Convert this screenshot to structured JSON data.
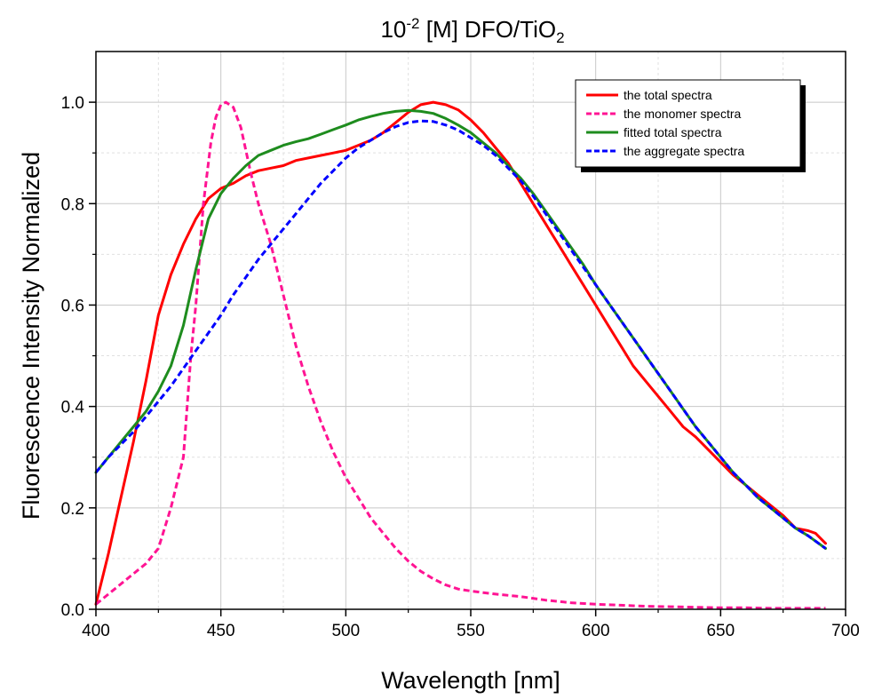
{
  "chart_data": {
    "type": "line",
    "title": {
      "base": "10",
      "exponent": "-2",
      "middle": " [M] DFO/TiO",
      "subscript": "2"
    },
    "xlabel": "Wavelength [nm]",
    "ylabel": "Fluorescence Intensity Normalized",
    "xlim": [
      400,
      700
    ],
    "ylim": [
      0,
      1.1
    ],
    "xticks": [
      "400",
      "450",
      "500",
      "550",
      "600",
      "650",
      "700"
    ],
    "yticks": [
      "0.0",
      "0.2",
      "0.4",
      "0.6",
      "0.8",
      "1.0"
    ],
    "grid": true,
    "legend_position": "top-right",
    "series": [
      {
        "name": "the total spectra",
        "color": "#ff0000",
        "dash": "solid",
        "points": [
          [
            400,
            0.01
          ],
          [
            405,
            0.11
          ],
          [
            410,
            0.22
          ],
          [
            415,
            0.33
          ],
          [
            420,
            0.45
          ],
          [
            425,
            0.58
          ],
          [
            430,
            0.66
          ],
          [
            435,
            0.72
          ],
          [
            440,
            0.77
          ],
          [
            445,
            0.81
          ],
          [
            450,
            0.83
          ],
          [
            455,
            0.84
          ],
          [
            460,
            0.855
          ],
          [
            465,
            0.865
          ],
          [
            470,
            0.87
          ],
          [
            475,
            0.875
          ],
          [
            480,
            0.885
          ],
          [
            485,
            0.89
          ],
          [
            490,
            0.895
          ],
          [
            495,
            0.9
          ],
          [
            500,
            0.905
          ],
          [
            505,
            0.915
          ],
          [
            510,
            0.925
          ],
          [
            515,
            0.94
          ],
          [
            520,
            0.96
          ],
          [
            525,
            0.98
          ],
          [
            530,
            0.995
          ],
          [
            535,
            1.0
          ],
          [
            540,
            0.995
          ],
          [
            545,
            0.985
          ],
          [
            550,
            0.965
          ],
          [
            555,
            0.94
          ],
          [
            560,
            0.91
          ],
          [
            565,
            0.88
          ],
          [
            570,
            0.84
          ],
          [
            575,
            0.8
          ],
          [
            580,
            0.76
          ],
          [
            585,
            0.72
          ],
          [
            590,
            0.68
          ],
          [
            595,
            0.64
          ],
          [
            600,
            0.6
          ],
          [
            605,
            0.56
          ],
          [
            610,
            0.52
          ],
          [
            615,
            0.48
          ],
          [
            620,
            0.45
          ],
          [
            625,
            0.42
          ],
          [
            630,
            0.39
          ],
          [
            635,
            0.36
          ],
          [
            640,
            0.34
          ],
          [
            645,
            0.315
          ],
          [
            650,
            0.29
          ],
          [
            655,
            0.265
          ],
          [
            660,
            0.245
          ],
          [
            665,
            0.225
          ],
          [
            670,
            0.205
          ],
          [
            675,
            0.185
          ],
          [
            680,
            0.16
          ],
          [
            685,
            0.155
          ],
          [
            688,
            0.15
          ],
          [
            692,
            0.13
          ]
        ]
      },
      {
        "name": "the monomer spectra",
        "color": "#ff1493",
        "dash": "dashed",
        "points": [
          [
            400,
            0.01
          ],
          [
            405,
            0.03
          ],
          [
            410,
            0.05
          ],
          [
            415,
            0.07
          ],
          [
            420,
            0.09
          ],
          [
            425,
            0.12
          ],
          [
            430,
            0.2
          ],
          [
            435,
            0.3
          ],
          [
            438,
            0.5
          ],
          [
            440,
            0.6
          ],
          [
            443,
            0.8
          ],
          [
            446,
            0.92
          ],
          [
            448,
            0.97
          ],
          [
            450,
            0.995
          ],
          [
            452,
            1.0
          ],
          [
            455,
            0.99
          ],
          [
            458,
            0.95
          ],
          [
            462,
            0.86
          ],
          [
            465,
            0.8
          ],
          [
            470,
            0.72
          ],
          [
            475,
            0.62
          ],
          [
            480,
            0.52
          ],
          [
            485,
            0.44
          ],
          [
            490,
            0.37
          ],
          [
            495,
            0.31
          ],
          [
            500,
            0.26
          ],
          [
            505,
            0.22
          ],
          [
            510,
            0.18
          ],
          [
            515,
            0.15
          ],
          [
            520,
            0.12
          ],
          [
            525,
            0.095
          ],
          [
            530,
            0.075
          ],
          [
            535,
            0.06
          ],
          [
            540,
            0.048
          ],
          [
            545,
            0.04
          ],
          [
            550,
            0.036
          ],
          [
            555,
            0.033
          ],
          [
            560,
            0.03
          ],
          [
            570,
            0.025
          ],
          [
            580,
            0.018
          ],
          [
            590,
            0.013
          ],
          [
            600,
            0.01
          ],
          [
            610,
            0.008
          ],
          [
            620,
            0.006
          ],
          [
            630,
            0.005
          ],
          [
            640,
            0.004
          ],
          [
            650,
            0.003
          ],
          [
            660,
            0.003
          ],
          [
            670,
            0.002
          ],
          [
            680,
            0.002
          ],
          [
            692,
            0.002
          ]
        ]
      },
      {
        "name": "fitted total spectra",
        "color": "#1e8c1e",
        "dash": "solid",
        "points": [
          [
            400,
            0.27
          ],
          [
            405,
            0.3
          ],
          [
            410,
            0.33
          ],
          [
            415,
            0.36
          ],
          [
            420,
            0.39
          ],
          [
            425,
            0.43
          ],
          [
            430,
            0.48
          ],
          [
            435,
            0.56
          ],
          [
            440,
            0.67
          ],
          [
            445,
            0.77
          ],
          [
            450,
            0.82
          ],
          [
            455,
            0.85
          ],
          [
            460,
            0.875
          ],
          [
            465,
            0.895
          ],
          [
            470,
            0.905
          ],
          [
            475,
            0.915
          ],
          [
            480,
            0.922
          ],
          [
            485,
            0.928
          ],
          [
            490,
            0.937
          ],
          [
            495,
            0.946
          ],
          [
            500,
            0.955
          ],
          [
            505,
            0.965
          ],
          [
            510,
            0.972
          ],
          [
            515,
            0.978
          ],
          [
            520,
            0.982
          ],
          [
            525,
            0.984
          ],
          [
            530,
            0.982
          ],
          [
            535,
            0.978
          ],
          [
            540,
            0.968
          ],
          [
            545,
            0.955
          ],
          [
            550,
            0.94
          ],
          [
            555,
            0.92
          ],
          [
            560,
            0.9
          ],
          [
            565,
            0.875
          ],
          [
            570,
            0.85
          ],
          [
            575,
            0.82
          ],
          [
            580,
            0.785
          ],
          [
            585,
            0.75
          ],
          [
            590,
            0.715
          ],
          [
            595,
            0.68
          ],
          [
            600,
            0.64
          ],
          [
            605,
            0.605
          ],
          [
            610,
            0.57
          ],
          [
            615,
            0.535
          ],
          [
            620,
            0.5
          ],
          [
            625,
            0.465
          ],
          [
            630,
            0.43
          ],
          [
            635,
            0.395
          ],
          [
            640,
            0.36
          ],
          [
            645,
            0.33
          ],
          [
            650,
            0.3
          ],
          [
            655,
            0.27
          ],
          [
            660,
            0.245
          ],
          [
            665,
            0.22
          ],
          [
            670,
            0.2
          ],
          [
            675,
            0.18
          ],
          [
            680,
            0.16
          ],
          [
            685,
            0.145
          ],
          [
            692,
            0.12
          ]
        ]
      },
      {
        "name": "the aggregate spectra",
        "color": "#0000ff",
        "dash": "dashed",
        "points": [
          [
            400,
            0.27
          ],
          [
            405,
            0.3
          ],
          [
            410,
            0.325
          ],
          [
            415,
            0.35
          ],
          [
            420,
            0.38
          ],
          [
            425,
            0.41
          ],
          [
            430,
            0.44
          ],
          [
            435,
            0.475
          ],
          [
            440,
            0.51
          ],
          [
            445,
            0.545
          ],
          [
            450,
            0.58
          ],
          [
            455,
            0.62
          ],
          [
            460,
            0.655
          ],
          [
            465,
            0.69
          ],
          [
            470,
            0.72
          ],
          [
            475,
            0.75
          ],
          [
            480,
            0.78
          ],
          [
            485,
            0.81
          ],
          [
            490,
            0.84
          ],
          [
            495,
            0.865
          ],
          [
            500,
            0.89
          ],
          [
            505,
            0.91
          ],
          [
            510,
            0.925
          ],
          [
            515,
            0.94
          ],
          [
            520,
            0.952
          ],
          [
            525,
            0.96
          ],
          [
            530,
            0.963
          ],
          [
            535,
            0.962
          ],
          [
            540,
            0.955
          ],
          [
            545,
            0.945
          ],
          [
            550,
            0.93
          ],
          [
            555,
            0.915
          ],
          [
            560,
            0.895
          ],
          [
            565,
            0.87
          ],
          [
            570,
            0.845
          ],
          [
            575,
            0.815
          ],
          [
            580,
            0.78
          ],
          [
            585,
            0.745
          ],
          [
            590,
            0.71
          ],
          [
            595,
            0.675
          ],
          [
            600,
            0.64
          ],
          [
            605,
            0.605
          ],
          [
            610,
            0.57
          ],
          [
            615,
            0.535
          ],
          [
            620,
            0.5
          ],
          [
            625,
            0.465
          ],
          [
            630,
            0.43
          ],
          [
            635,
            0.395
          ],
          [
            640,
            0.36
          ],
          [
            645,
            0.33
          ],
          [
            650,
            0.3
          ],
          [
            655,
            0.27
          ],
          [
            660,
            0.245
          ],
          [
            665,
            0.22
          ],
          [
            670,
            0.2
          ],
          [
            675,
            0.18
          ],
          [
            680,
            0.16
          ],
          [
            685,
            0.145
          ],
          [
            692,
            0.12
          ]
        ]
      }
    ]
  }
}
